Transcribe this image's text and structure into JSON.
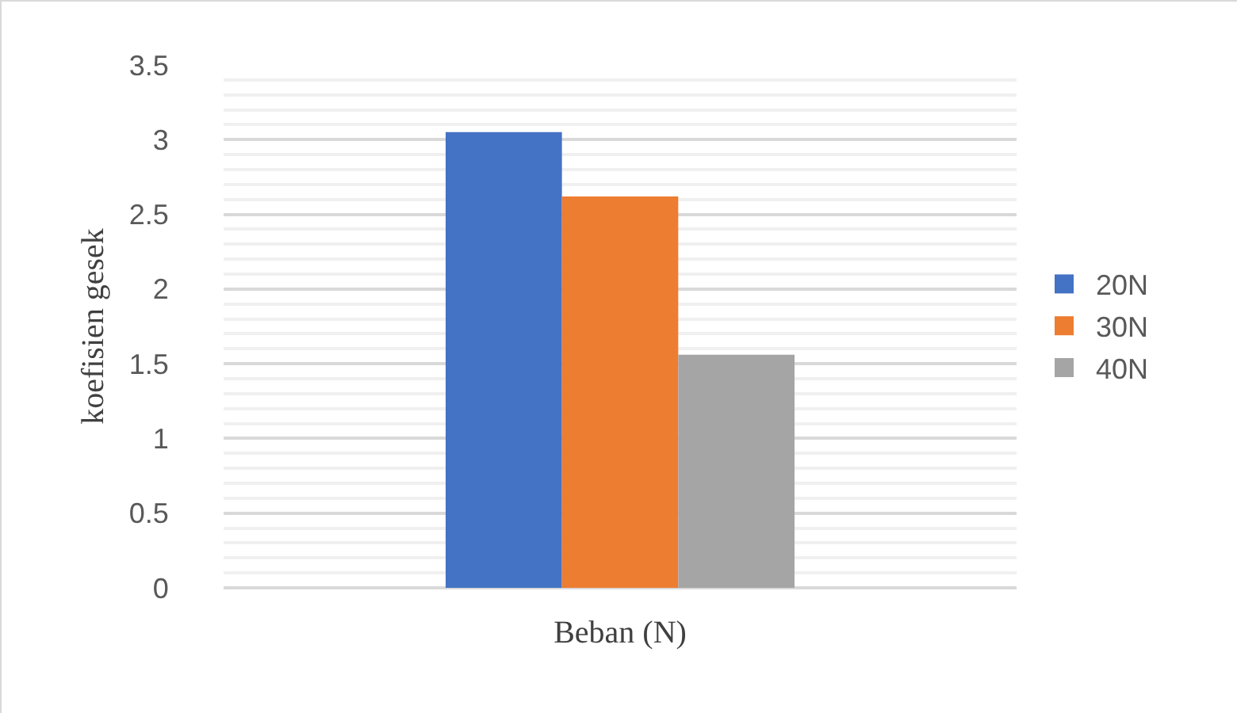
{
  "chart_data": {
    "type": "bar",
    "categories": [
      null
    ],
    "xlabel": "Beban (N)",
    "ylabel": "koefisien gesek",
    "series": [
      {
        "name": "20N",
        "color": "#4472c4",
        "values": [
          3.05
        ]
      },
      {
        "name": "30N",
        "color": "#ed7d31",
        "values": [
          2.62
        ]
      },
      {
        "name": "40N",
        "color": "#a5a5a5",
        "values": [
          1.56
        ]
      }
    ],
    "ylim": [
      0,
      3.5
    ],
    "yticks": [
      0,
      0.5,
      1,
      1.5,
      2,
      2.5,
      3,
      3.5
    ],
    "grid": "y",
    "legend": "right"
  }
}
